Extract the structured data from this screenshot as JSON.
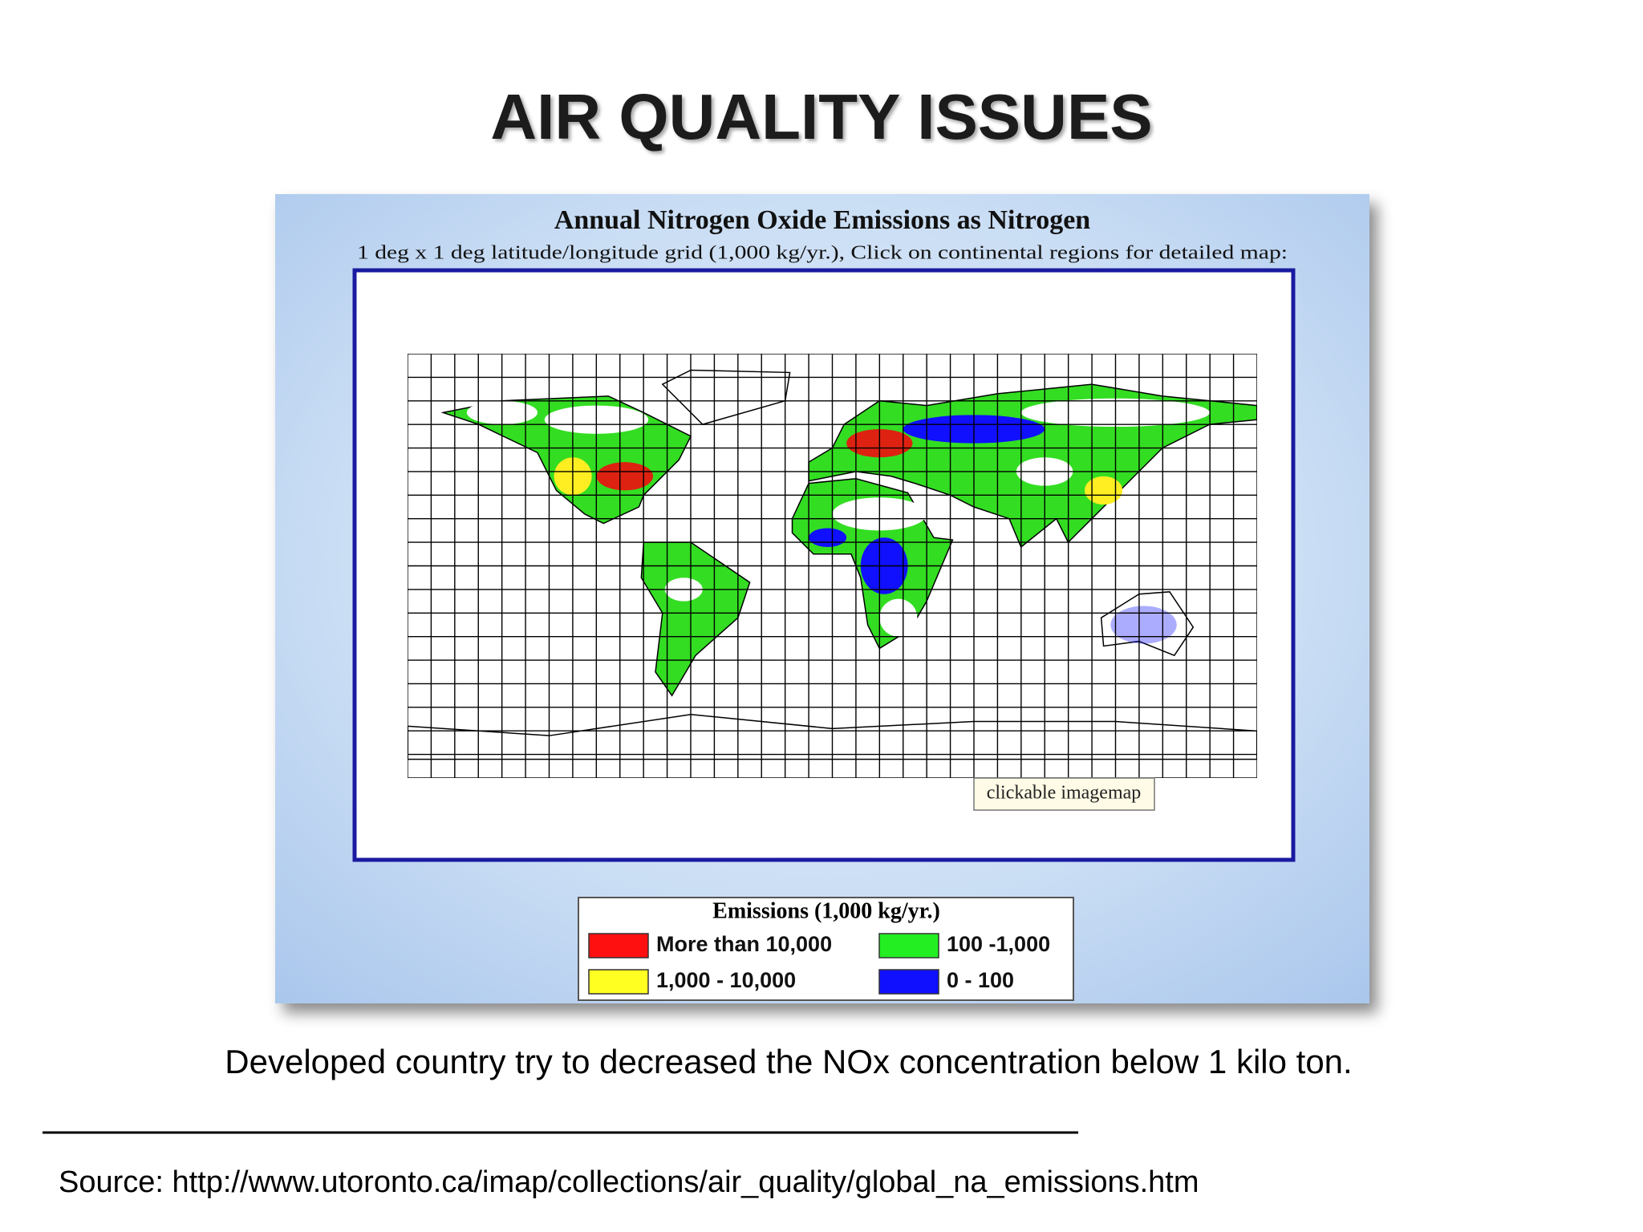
{
  "slide": {
    "title": "AIR QUALITY ISSUES",
    "figure": {
      "title": "Annual Nitrogen Oxide Emissions as Nitrogen",
      "subtitle": "1 deg x 1 deg latitude/longitude grid (1,000 kg/yr.), Click on continental regions for detailed map:",
      "map_note": "clickable imagemap",
      "legend": {
        "title": "Emissions (1,000 kg/yr.)",
        "items": [
          {
            "label": "More than 10,000",
            "color": "#ff1010"
          },
          {
            "label": "100 -1,000",
            "color": "#22ee22"
          },
          {
            "label": "1,000 - 10,000",
            "color": "#ffff22"
          },
          {
            "label": "0 - 100",
            "color": "#1010ff"
          }
        ]
      }
    },
    "caption": "Developed country try to decreased the NOx concentration below 1 kilo ton.",
    "source": "Source: http://www.utoronto.ca/imap/collections/air_quality/global_na_emissions.htm"
  }
}
